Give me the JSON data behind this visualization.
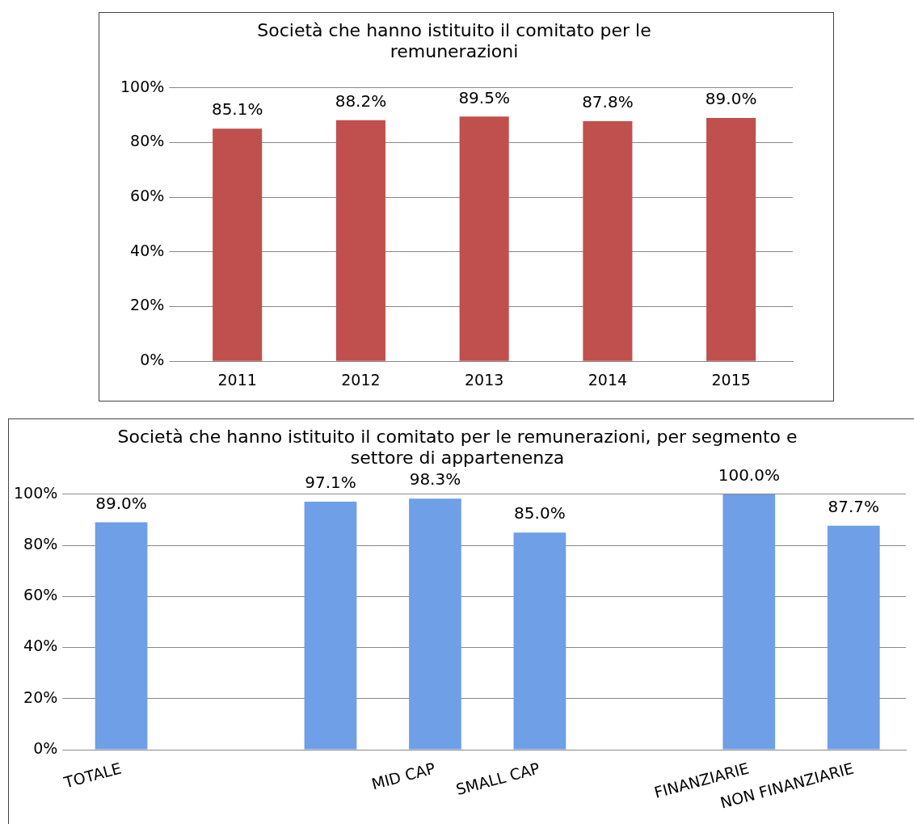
{
  "chart_data": [
    {
      "type": "bar",
      "title": "Società che hanno istituito il comitato per le remunerazioni",
      "categories": [
        "2011",
        "2012",
        "2013",
        "2014",
        "2015"
      ],
      "values": [
        85.1,
        88.2,
        89.5,
        87.8,
        89.0
      ],
      "value_labels": [
        "85.1%",
        "88.2%",
        "89.5%",
        "87.8%",
        "89.0%"
      ],
      "color": "#c0504d",
      "ylim": [
        0,
        100
      ],
      "yticks": [
        {
          "value": 0,
          "label": "0%"
        },
        {
          "value": 20,
          "label": "20%"
        },
        {
          "value": 40,
          "label": "40%"
        },
        {
          "value": 60,
          "label": "60%"
        },
        {
          "value": 80,
          "label": "80%"
        },
        {
          "value": 100,
          "label": "100%"
        }
      ],
      "grid": "y"
    },
    {
      "type": "bar",
      "title": "Società che hanno istituito il comitato per le remunerazioni, per segmento e settore di appartenenza",
      "categories": [
        "TOTALE",
        null,
        null,
        "MID CAP",
        "SMALL CAP",
        null,
        "FINANZIARIE",
        "NON FINANZIARIE"
      ],
      "values": [
        89.0,
        null,
        97.1,
        98.3,
        85.0,
        null,
        100.0,
        87.7
      ],
      "value_labels": [
        "89.0%",
        null,
        "97.1%",
        "98.3%",
        "85.0%",
        null,
        "100.0%",
        "87.7%"
      ],
      "color": "#6f9fe6",
      "ylim": [
        0,
        100
      ],
      "yticks": [
        {
          "value": 0,
          "label": "0%"
        },
        {
          "value": 20,
          "label": "20%"
        },
        {
          "value": 40,
          "label": "40%"
        },
        {
          "value": 60,
          "label": "60%"
        },
        {
          "value": 80,
          "label": "80%"
        },
        {
          "value": 100,
          "label": "100%"
        }
      ],
      "grid": "y"
    }
  ]
}
